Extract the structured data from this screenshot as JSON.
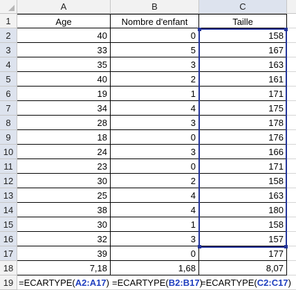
{
  "columns": [
    "A",
    "B",
    "C"
  ],
  "rows": [
    "1",
    "2",
    "3",
    "4",
    "5",
    "6",
    "7",
    "8",
    "9",
    "10",
    "11",
    "12",
    "13",
    "14",
    "15",
    "16",
    "17",
    "18",
    "19"
  ],
  "headers": {
    "a": "Age",
    "b": "Nombre d'enfant",
    "c": "Taille"
  },
  "data": [
    {
      "a": "40",
      "b": "0",
      "c": "158"
    },
    {
      "a": "33",
      "b": "5",
      "c": "167"
    },
    {
      "a": "35",
      "b": "3",
      "c": "163"
    },
    {
      "a": "40",
      "b": "2",
      "c": "161"
    },
    {
      "a": "19",
      "b": "1",
      "c": "171"
    },
    {
      "a": "34",
      "b": "4",
      "c": "175"
    },
    {
      "a": "28",
      "b": "3",
      "c": "178"
    },
    {
      "a": "18",
      "b": "0",
      "c": "176"
    },
    {
      "a": "24",
      "b": "3",
      "c": "166"
    },
    {
      "a": "23",
      "b": "0",
      "c": "171"
    },
    {
      "a": "30",
      "b": "2",
      "c": "158"
    },
    {
      "a": "25",
      "b": "4",
      "c": "163"
    },
    {
      "a": "38",
      "b": "4",
      "c": "180"
    },
    {
      "a": "30",
      "b": "1",
      "c": "158"
    },
    {
      "a": "32",
      "b": "3",
      "c": "157"
    },
    {
      "a": "39",
      "b": "0",
      "c": "177"
    }
  ],
  "results": {
    "a": "7,18",
    "b": "1,68",
    "c": "8,07"
  },
  "formulas": {
    "a": {
      "prefix": "=ECARTYPE(",
      "ref": "A2:A17",
      "suffix": ")"
    },
    "b": {
      "prefix": "=ECARTYPE(",
      "ref": "B2:B17",
      "suffix": ")"
    },
    "c": {
      "prefix": "=ECARTYPE(",
      "ref": "C2:C17",
      "suffix": ")"
    }
  },
  "selection": {
    "range": "C2:C17",
    "color": "#22349a"
  }
}
